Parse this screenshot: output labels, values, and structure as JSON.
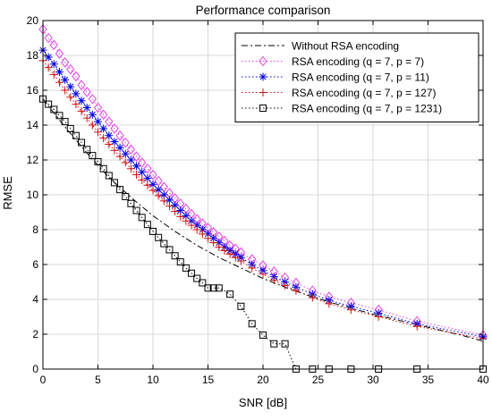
{
  "chart_data": {
    "type": "line",
    "title": "Performance comparison",
    "xlabel": "SNR [dB]",
    "ylabel": "RMSE",
    "xlim": [
      0,
      40
    ],
    "ylim": [
      0,
      20
    ],
    "xticks": [
      0,
      5,
      10,
      15,
      20,
      25,
      30,
      35,
      40
    ],
    "yticks": [
      0,
      2,
      4,
      6,
      8,
      10,
      12,
      14,
      16,
      18,
      20
    ],
    "grid": true,
    "legend_position": "top-right",
    "series": [
      {
        "name": "Without RSA encoding",
        "color": "#000000",
        "line": "dashdot",
        "marker": "none",
        "x": [
          0,
          2,
          4,
          6,
          8,
          10,
          12,
          14,
          16,
          18,
          20,
          22,
          24,
          26,
          28,
          30,
          32,
          34,
          36,
          38,
          40
        ],
        "y": [
          15.5,
          13.9,
          12.4,
          11.0,
          9.85,
          8.8,
          7.9,
          7.1,
          6.4,
          5.8,
          5.2,
          4.7,
          4.25,
          3.85,
          3.5,
          3.15,
          2.85,
          2.55,
          2.25,
          1.95,
          1.6
        ]
      },
      {
        "name": "RSA encoding (q = 7, p = 7)",
        "color": "#e040e0",
        "line": "dotted",
        "marker": "diamond",
        "x": [
          0,
          0.5,
          1,
          1.5,
          2,
          2.5,
          3,
          3.5,
          4,
          4.5,
          5,
          5.5,
          6,
          6.5,
          7,
          7.5,
          8,
          8.5,
          9,
          9.5,
          10,
          10.5,
          11,
          11.5,
          12,
          12.5,
          13,
          13.5,
          14,
          14.5,
          15,
          15.5,
          16,
          16.5,
          17,
          17.5,
          18,
          19,
          20,
          21,
          22,
          23,
          24.5,
          26,
          28,
          30.5,
          34,
          40
        ],
        "y": [
          19.5,
          19.0,
          18.6,
          18.1,
          17.6,
          17.2,
          16.8,
          16.3,
          15.9,
          15.5,
          15.0,
          14.6,
          14.2,
          13.8,
          13.4,
          13.0,
          12.6,
          12.2,
          11.85,
          11.5,
          11.15,
          10.8,
          10.45,
          10.1,
          9.8,
          9.5,
          9.2,
          8.9,
          8.6,
          8.35,
          8.1,
          7.85,
          7.6,
          7.35,
          7.1,
          6.9,
          6.7,
          6.3,
          5.95,
          5.6,
          5.25,
          4.95,
          4.5,
          4.15,
          3.8,
          3.4,
          2.75,
          1.95
        ]
      },
      {
        "name": "RSA encoding (q = 7, p = 11)",
        "color": "#0000e6",
        "line": "dotted",
        "marker": "asterisk",
        "x": [
          0,
          0.5,
          1,
          1.5,
          2,
          2.5,
          3,
          3.5,
          4,
          4.5,
          5,
          5.5,
          6,
          6.5,
          7,
          7.5,
          8,
          8.5,
          9,
          9.5,
          10,
          10.5,
          11,
          11.5,
          12,
          12.5,
          13,
          13.5,
          14,
          14.5,
          15,
          15.5,
          16,
          16.5,
          17,
          17.5,
          18,
          19,
          20,
          21,
          22,
          23,
          24.5,
          26,
          28,
          30.5,
          34,
          40
        ],
        "y": [
          18.3,
          17.9,
          17.5,
          17.05,
          16.6,
          16.2,
          15.8,
          15.4,
          15.0,
          14.6,
          14.2,
          13.8,
          13.4,
          13.05,
          12.7,
          12.35,
          12.0,
          11.65,
          11.3,
          10.95,
          10.6,
          10.3,
          10.0,
          9.7,
          9.4,
          9.1,
          8.8,
          8.5,
          8.25,
          8.0,
          7.75,
          7.5,
          7.25,
          7.0,
          6.8,
          6.6,
          6.4,
          6.0,
          5.65,
          5.3,
          5.0,
          4.7,
          4.3,
          3.95,
          3.6,
          3.2,
          2.6,
          1.85
        ]
      },
      {
        "name": "RSA encoding (q = 7, p = 127)",
        "color": "#d01010",
        "line": "dotted",
        "marker": "plus",
        "x": [
          0,
          0.5,
          1,
          1.5,
          2,
          2.5,
          3,
          3.5,
          4,
          4.5,
          5,
          5.5,
          6,
          6.5,
          7,
          7.5,
          8,
          8.5,
          9,
          9.5,
          10,
          10.5,
          11,
          11.5,
          12,
          12.5,
          13,
          13.5,
          14,
          14.5,
          15,
          15.5,
          16,
          16.5,
          17,
          17.5,
          18,
          19,
          20,
          21,
          22,
          23,
          24.5,
          26,
          28,
          30.5,
          34,
          40
        ],
        "y": [
          17.7,
          17.3,
          16.9,
          16.45,
          16.0,
          15.6,
          15.2,
          14.8,
          14.4,
          14.0,
          13.6,
          13.25,
          12.9,
          12.55,
          12.2,
          11.85,
          11.5,
          11.15,
          10.85,
          10.55,
          10.25,
          9.95,
          9.65,
          9.35,
          9.05,
          8.75,
          8.5,
          8.25,
          8.0,
          7.75,
          7.5,
          7.25,
          7.0,
          6.8,
          6.6,
          6.4,
          6.2,
          5.8,
          5.45,
          5.1,
          4.8,
          4.5,
          4.1,
          3.75,
          3.4,
          3.0,
          2.45,
          1.75
        ]
      },
      {
        "name": "RSA encoding (q = 7, p = 1231)",
        "color": "#000000",
        "line": "dotted",
        "marker": "square",
        "x": [
          0,
          0.5,
          1,
          1.5,
          2,
          2.5,
          3,
          3.5,
          4,
          4.5,
          5,
          5.5,
          6,
          6.5,
          7,
          7.5,
          8,
          8.5,
          9,
          9.5,
          10,
          10.5,
          11,
          11.5,
          12,
          12.5,
          13,
          13.5,
          14,
          14.5,
          15,
          15.5,
          16,
          17,
          18,
          19,
          20,
          21,
          22,
          23,
          24.5,
          26,
          28,
          30.5,
          34,
          40
        ],
        "y": [
          15.5,
          15.2,
          14.9,
          14.55,
          14.2,
          13.8,
          13.4,
          13.0,
          12.6,
          12.25,
          11.9,
          11.5,
          11.1,
          10.7,
          10.3,
          9.9,
          9.5,
          9.1,
          8.7,
          8.3,
          7.9,
          7.55,
          7.2,
          6.85,
          6.5,
          6.15,
          5.8,
          5.5,
          5.2,
          4.95,
          4.65,
          4.65,
          4.65,
          4.3,
          3.6,
          2.6,
          1.95,
          1.45,
          1.45,
          0,
          0,
          0,
          0,
          0,
          0,
          0
        ]
      }
    ]
  }
}
